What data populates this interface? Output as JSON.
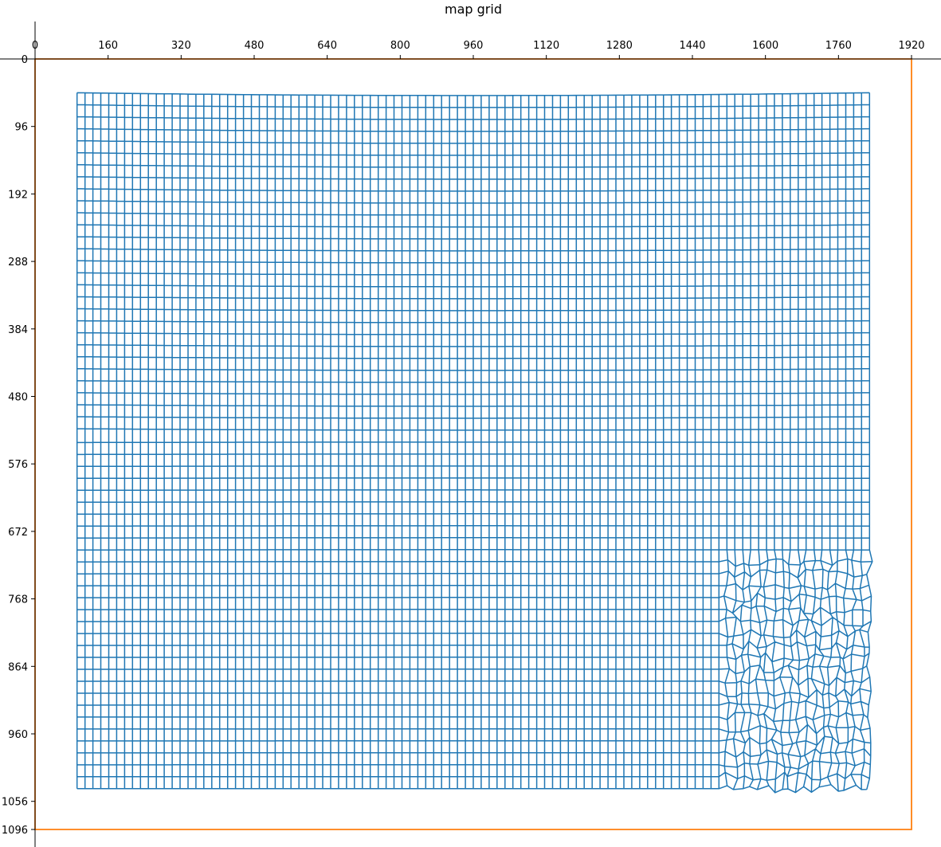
{
  "chart_data": {
    "type": "line",
    "title": "map grid",
    "xlabel": "",
    "ylabel": "",
    "xlim": [
      0,
      1920
    ],
    "ylim": [
      1096,
      0
    ],
    "x_ticks": [
      0,
      160,
      320,
      480,
      640,
      800,
      960,
      1120,
      1280,
      1440,
      1600,
      1760,
      1920
    ],
    "y_ticks": [
      0,
      96,
      192,
      288,
      384,
      480,
      576,
      672,
      768,
      864,
      960,
      1056,
      1096
    ],
    "x_axis_position": "top",
    "grid": false,
    "legend": "none",
    "series": [
      {
        "color": "#1f77b4",
        "kind": "mesh",
        "x_range": [
          92,
          1828
        ],
        "y_range": [
          52,
          1038
        ],
        "columns": 101,
        "rows": 59,
        "distorted_region": {
          "x_range": [
            1500,
            1828
          ],
          "y_range": [
            700,
            1038
          ]
        }
      },
      {
        "color": "#ff7f0e",
        "kind": "rectangle",
        "x": [
          0,
          1920,
          1920,
          0,
          0
        ],
        "y": [
          0,
          0,
          1096,
          1096,
          0
        ]
      }
    ]
  },
  "colors": {
    "mesh": "#1f77b4",
    "frame": "#ff7f0e",
    "axis": "#000000"
  }
}
